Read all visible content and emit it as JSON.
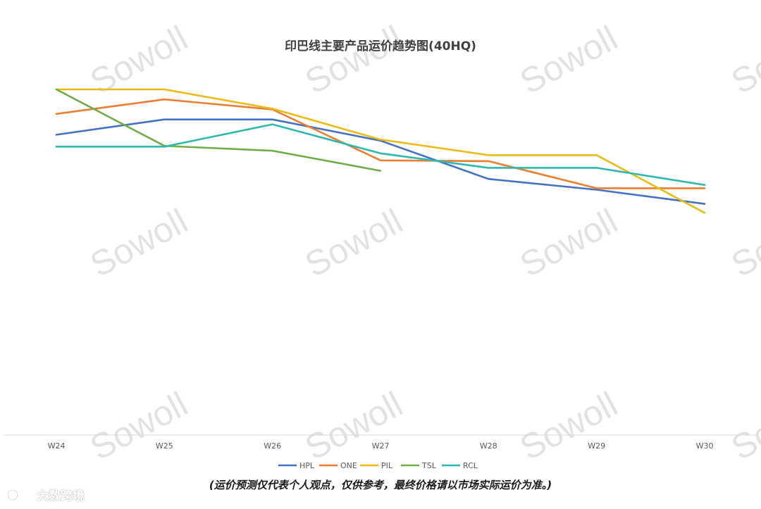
{
  "chart_data": {
    "type": "line",
    "title": "印巴线主要产品运价趋势图(40HQ)",
    "xlabel": "",
    "ylabel": "",
    "categories": [
      "W24",
      "W25",
      "W26",
      "W27",
      "W28",
      "W29",
      "W30"
    ],
    "ylim": [
      0,
      100
    ],
    "grid": false,
    "legend_position": "bottom",
    "series": [
      {
        "name": "HPL",
        "color": "#4472c4",
        "values": [
          80.8,
          84.9,
          84.9,
          79.2,
          68.9,
          66.0,
          62.2
        ]
      },
      {
        "name": "ONE",
        "color": "#ed7d31",
        "values": [
          86.4,
          90.3,
          87.6,
          73.9,
          73.7,
          66.4,
          66.4
        ]
      },
      {
        "name": "PIL",
        "color": "#ebbc15",
        "values": [
          93.0,
          93.0,
          87.8,
          79.5,
          75.3,
          75.3,
          59.8
        ]
      },
      {
        "name": "TSL",
        "color": "#70ad47",
        "values": [
          93.0,
          77.8,
          76.5,
          71.1,
          null,
          null,
          null
        ]
      },
      {
        "name": "RCL",
        "color": "#2fb9ad",
        "values": [
          77.6,
          77.6,
          83.6,
          75.8,
          71.9,
          71.9,
          67.3
        ]
      }
    ]
  },
  "note": "(运价预测仅代表个人观点，仅供参考，最终价格请以市场实际运价为准。)",
  "watermark": "Sowoll",
  "brand": {
    "text": "大数跨境",
    "logo_icon": "brand-logo-icon"
  }
}
